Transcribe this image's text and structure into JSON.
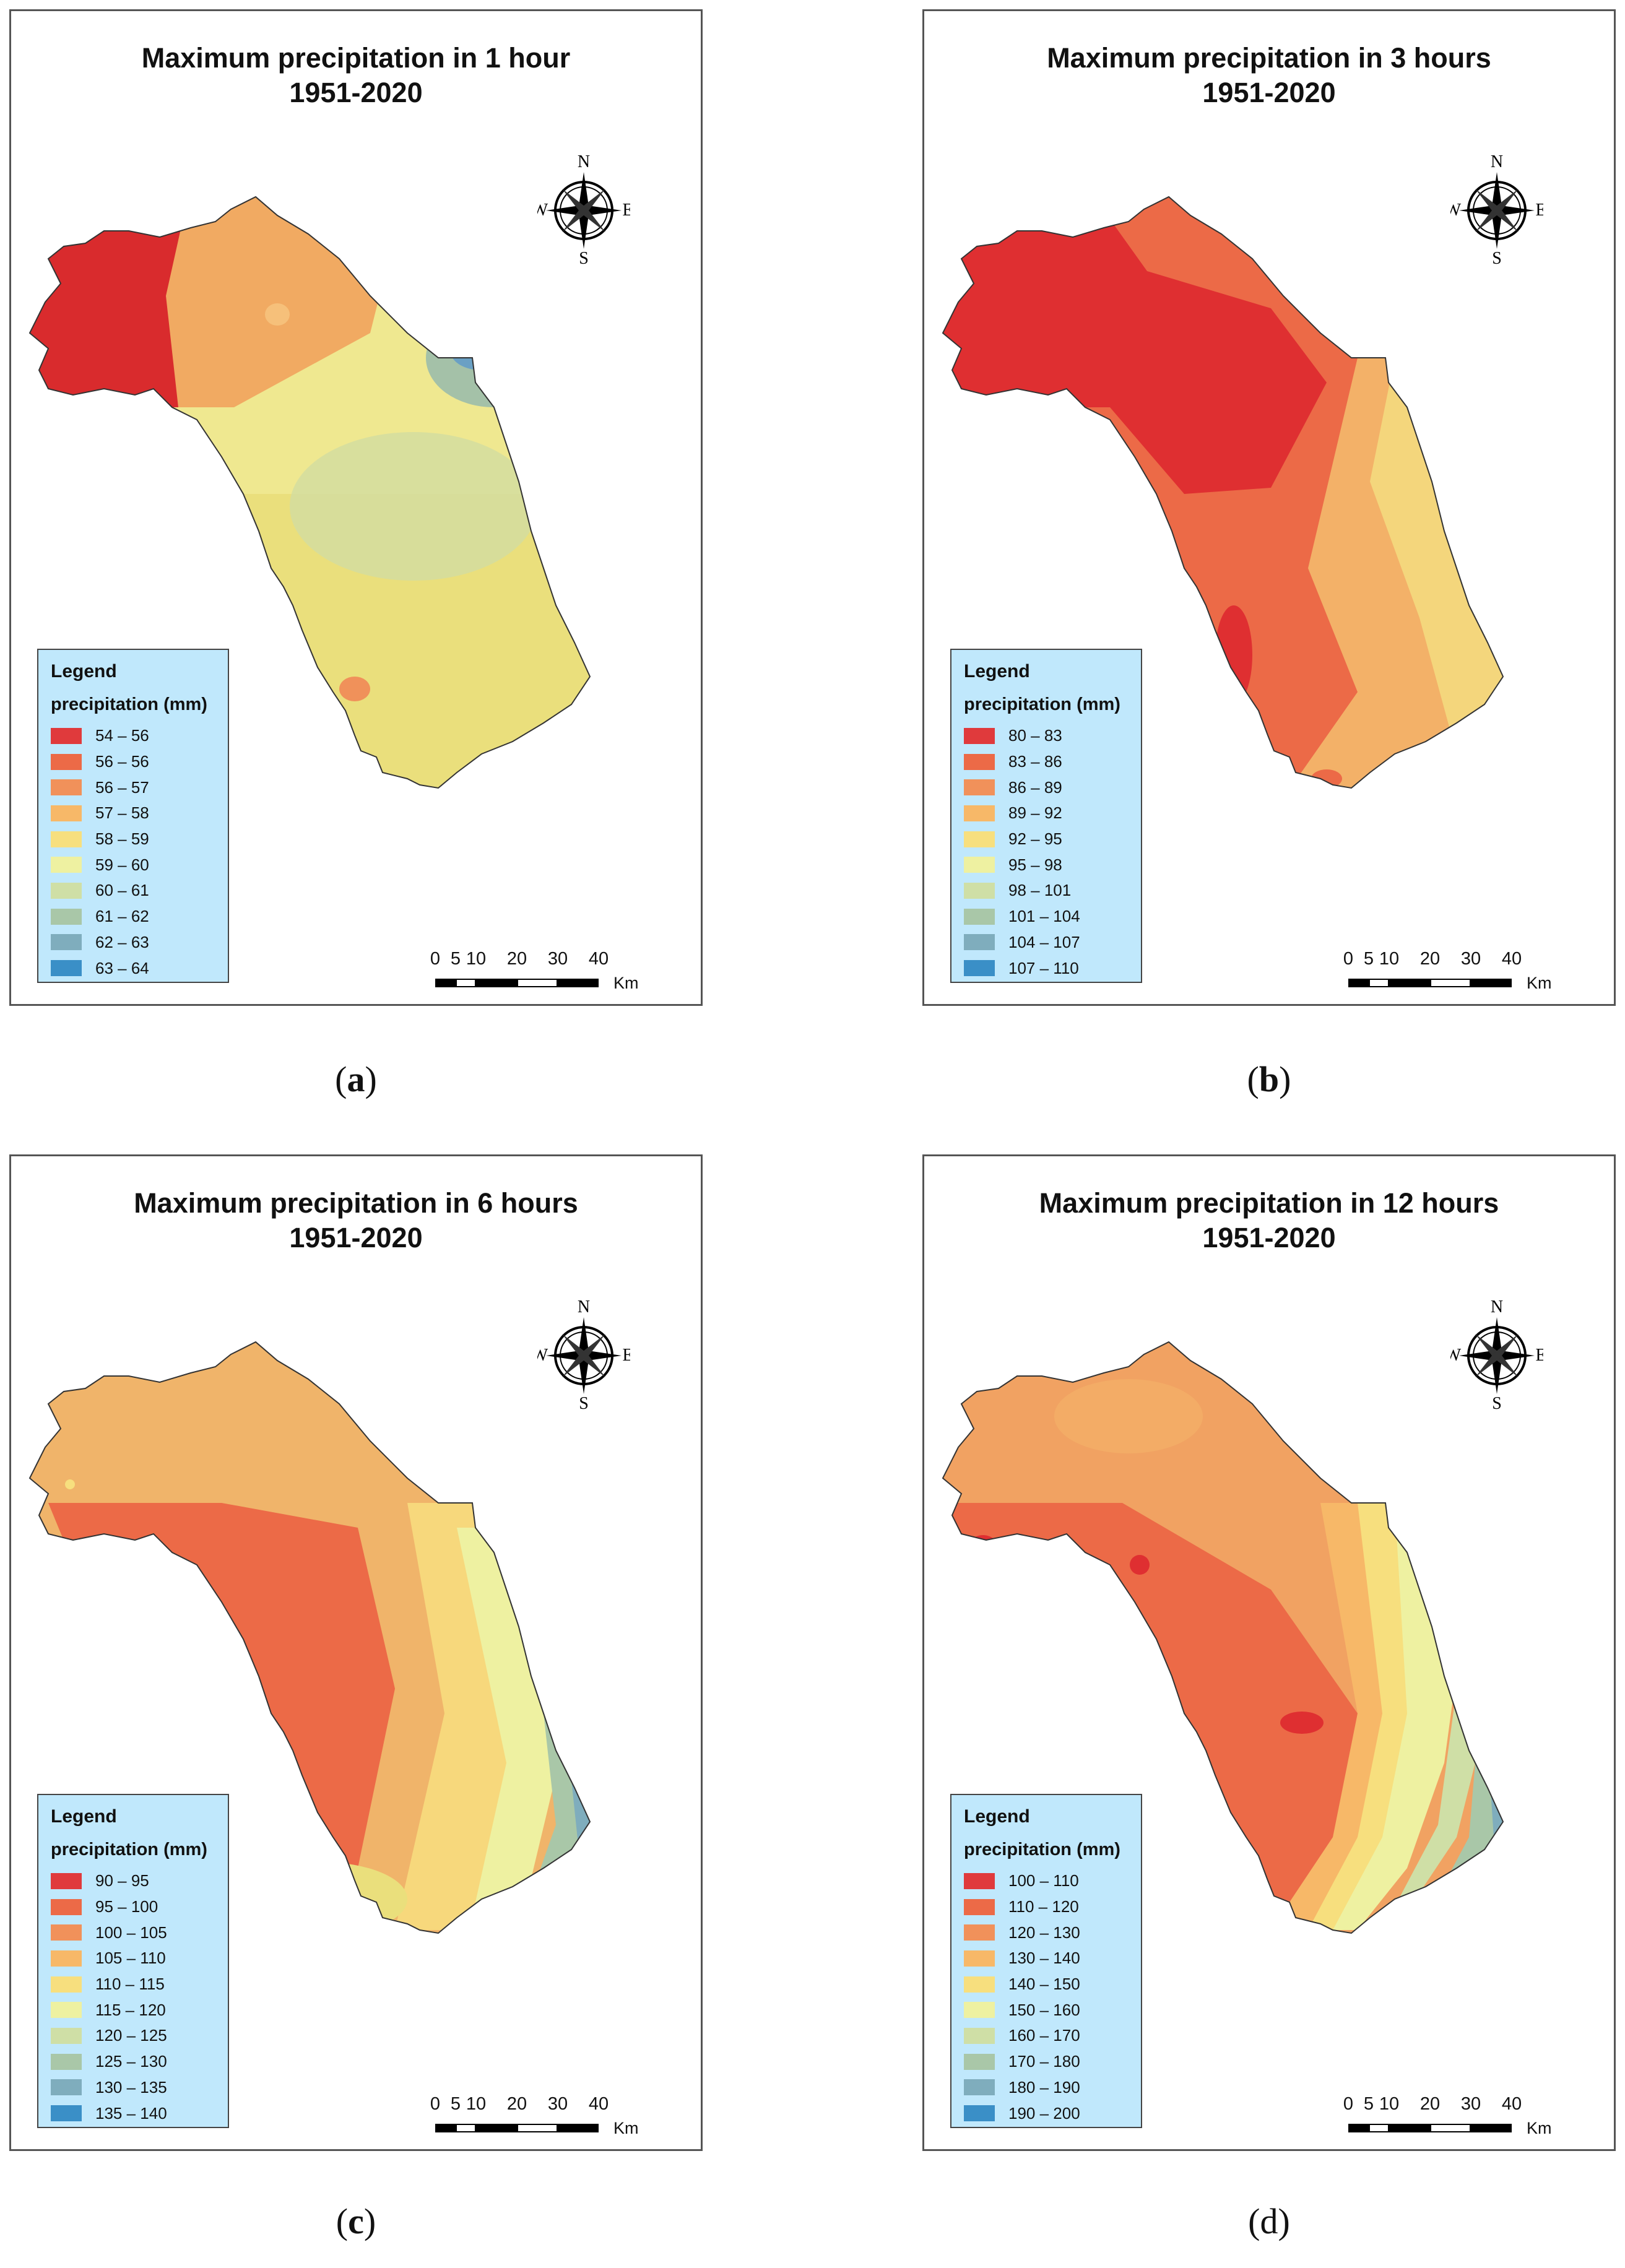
{
  "panels": [
    {
      "title_line1": "Maximum precipitation in 1 hour",
      "title_line2": "1951-2020",
      "caption_open": "(",
      "caption_letter": "a",
      "caption_close": ")",
      "legend_title": "Legend",
      "legend_subtitle": "precipitation (mm)",
      "legend": [
        "54 – 56",
        "56 – 56",
        "56 – 57",
        "57 – 58",
        "58 – 59",
        "59 – 60",
        "60 – 61",
        "61 – 62",
        "62 – 63",
        "63 – 64"
      ]
    },
    {
      "title_line1": "Maximum precipitation in 3 hours",
      "title_line2": "1951-2020",
      "caption_open": "(",
      "caption_letter": "b",
      "caption_close": ")",
      "legend_title": "Legend",
      "legend_subtitle": "precipitation (mm)",
      "legend": [
        "80 – 83",
        "83 – 86",
        "86 – 89",
        "89 – 92",
        "92 – 95",
        "95 – 98",
        "98 – 101",
        "101 – 104",
        "104 – 107",
        "107 – 110"
      ]
    },
    {
      "title_line1": "Maximum precipitation in 6 hours",
      "title_line2": "1951-2020",
      "caption_open": "(",
      "caption_letter": "c",
      "caption_close": ")",
      "legend_title": "Legend",
      "legend_subtitle": "precipitation (mm)",
      "legend": [
        "90 – 95",
        "95 – 100",
        "100 – 105",
        "105 – 110",
        "110 – 115",
        "115 – 120",
        "120 – 125",
        "125 – 130",
        "130 – 135",
        "135 – 140"
      ]
    },
    {
      "title_line1": "Maximum precipitation in 12 hours",
      "title_line2": "1951-2020",
      "caption_open": "(",
      "caption_letter": "d",
      "caption_close": ")",
      "legend_title": "Legend",
      "legend_subtitle": "precipitation (mm)",
      "legend": [
        "100 – 110",
        "110 – 120",
        "120 – 130",
        "130 – 140",
        "140 – 150",
        "150 – 160",
        "160 – 170",
        "170 – 180",
        "180 – 190",
        "190 – 200"
      ]
    }
  ],
  "legend_colors": [
    "#e03a3c",
    "#ec6a47",
    "#f1915a",
    "#f7b868",
    "#f7df7e",
    "#eef1a1",
    "#cfdfa6",
    "#a9c7a8",
    "#7fadbd",
    "#3a8fc7"
  ],
  "compass": {
    "n": "N",
    "s": "S",
    "e": "E",
    "w": "W"
  },
  "scale": {
    "ticks": [
      "0",
      "5",
      "10",
      "20",
      "30",
      "40"
    ],
    "unit": "Km"
  }
}
